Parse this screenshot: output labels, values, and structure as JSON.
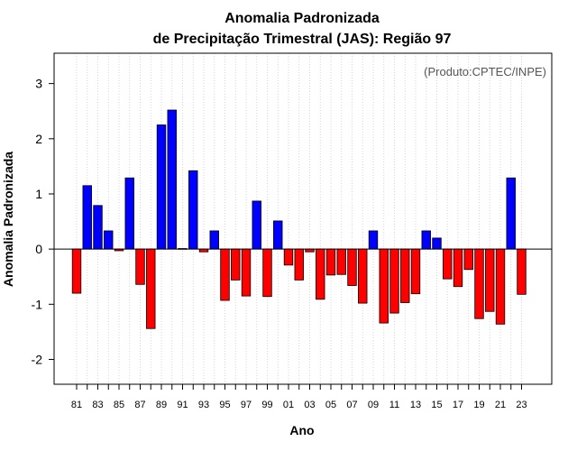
{
  "chart_data": {
    "type": "bar",
    "title_line1": "Anomalia Padronizada",
    "title_line2": "de Precipitação Trimestral (JAS): Região 97",
    "xlabel": "Ano",
    "ylabel": "Anomalia Padronizada",
    "annotation": "(Produto:CPTEC/INPE)",
    "ylim": [
      -2.45,
      3.55
    ],
    "yticks": [
      -2,
      -1,
      0,
      1,
      2,
      3
    ],
    "ytick_labels": [
      "-2",
      "-1",
      "0",
      "1",
      "2",
      "3"
    ],
    "x": [
      1981,
      1982,
      1983,
      1984,
      1985,
      1986,
      1987,
      1988,
      1989,
      1990,
      1991,
      1992,
      1993,
      1994,
      1995,
      1996,
      1997,
      1998,
      1999,
      2000,
      2001,
      2002,
      2003,
      2004,
      2005,
      2006,
      2007,
      2008,
      2009,
      2010,
      2011,
      2012,
      2013,
      2014,
      2015,
      2016,
      2017,
      2018,
      2019,
      2020,
      2021,
      2022,
      2023
    ],
    "x_tick_labels": [
      "81",
      "",
      "83",
      "",
      "85",
      "",
      "87",
      "",
      "89",
      "",
      "91",
      "",
      "93",
      "",
      "95",
      "",
      "97",
      "",
      "99",
      "",
      "01",
      "",
      "03",
      "",
      "05",
      "",
      "07",
      "",
      "09",
      "",
      "11",
      "",
      "13",
      "",
      "15",
      "",
      "17",
      "",
      "19",
      "",
      "21",
      "",
      "23"
    ],
    "values": [
      -0.8,
      1.15,
      0.79,
      0.33,
      -0.03,
      1.29,
      -0.64,
      -1.44,
      2.25,
      2.52,
      0.01,
      1.42,
      -0.05,
      0.33,
      -0.93,
      -0.56,
      -0.85,
      0.87,
      -0.86,
      0.51,
      -0.29,
      -0.56,
      -0.05,
      -0.91,
      -0.47,
      -0.46,
      -0.66,
      -0.98,
      0.33,
      -1.34,
      -1.16,
      -0.97,
      -0.81,
      0.33,
      0.2,
      -0.54,
      -0.68,
      -0.37,
      -1.26,
      -1.13,
      -1.36,
      1.29,
      -0.82
    ],
    "positive_color": "#0000ff",
    "negative_color": "#ff0000",
    "grid": "vertical-dotted",
    "legend": "none"
  }
}
